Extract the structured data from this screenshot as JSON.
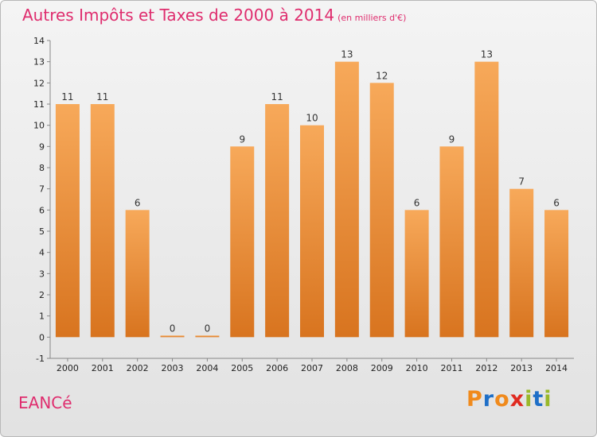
{
  "title": "Autres Impôts et Taxes de 2000 à 2014",
  "subtitle": "(en milliers d'€)",
  "place": "EANCé",
  "logo": "Proxiti",
  "colors": {
    "title": "#df2d6e",
    "bar_top": "#f7a95a",
    "bar_bottom": "#d8741f",
    "logo": [
      "#f08a1c",
      "#1e6fc7",
      "#f08a1c",
      "#e02a20",
      "#9ab82a",
      "#1e6fc7",
      "#9ab82a"
    ]
  },
  "chart_data": {
    "type": "bar",
    "categories": [
      "2000",
      "2001",
      "2002",
      "2003",
      "2004",
      "2005",
      "2006",
      "2007",
      "2008",
      "2009",
      "2010",
      "2011",
      "2012",
      "2013",
      "2014"
    ],
    "values": [
      11,
      11,
      6,
      0,
      0,
      9,
      11,
      10,
      13,
      12,
      6,
      9,
      13,
      7,
      6
    ],
    "title": "Autres Impôts et Taxes de 2000 à 2014",
    "ylim": [
      -1,
      14
    ],
    "yticks": [
      -1,
      0,
      1,
      2,
      3,
      4,
      5,
      6,
      7,
      8,
      9,
      10,
      11,
      12,
      13,
      14
    ],
    "grid": false,
    "data_labels": true
  }
}
